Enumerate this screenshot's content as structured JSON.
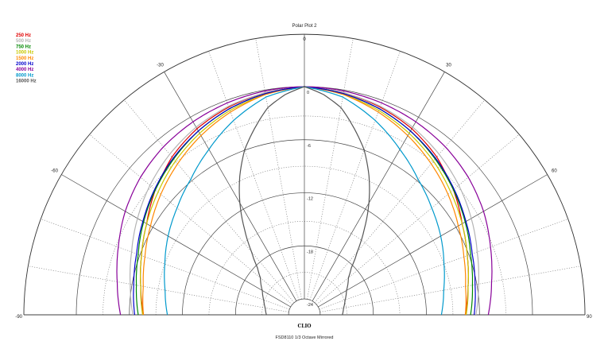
{
  "chart_data": {
    "type": "polar",
    "title": "Polar Plot 2",
    "brand": "CLIO",
    "footer": "FSD8110  1/3 Octave  Mirrored",
    "angle_ticks": [
      "-90",
      "-60",
      "-30",
      "0",
      "30",
      "60",
      "90"
    ],
    "db_ticks": [
      "0",
      "-6",
      "-12",
      "-18",
      "-24"
    ],
    "rlim": [
      -24,
      0
    ],
    "grid": true,
    "legend_position": "top-left",
    "series": [
      {
        "name": "250 Hz",
        "color": "#e00000",
        "angles": [
          0,
          10,
          20,
          30,
          40,
          45,
          50,
          55,
          60,
          70,
          80,
          90
        ],
        "db": [
          0,
          -0.3,
          -0.8,
          -1.5,
          -2.5,
          -3.2,
          -3.8,
          -4.5,
          -5.2,
          -6.2,
          -7,
          -7.6
        ]
      },
      {
        "name": "500 Hz",
        "color": "#b4b4b4",
        "angles": [
          0,
          10,
          20,
          30,
          40,
          50,
          60,
          70,
          80,
          90
        ],
        "db": [
          0,
          -0.3,
          -0.7,
          -1.3,
          -2.1,
          -3,
          -4,
          -5,
          -5.8,
          -6.4
        ]
      },
      {
        "name": "750 Hz",
        "color": "#008800",
        "angles": [
          0,
          10,
          20,
          30,
          40,
          50,
          60,
          70,
          80,
          90
        ],
        "db": [
          0,
          -0.4,
          -1,
          -1.8,
          -2.8,
          -3.8,
          -4.8,
          -5.8,
          -6.5,
          -7
        ]
      },
      {
        "name": "1000 Hz",
        "color": "#c8c800",
        "angles": [
          0,
          10,
          20,
          30,
          40,
          50,
          60,
          70,
          80,
          90
        ],
        "db": [
          0,
          -0.5,
          -1.2,
          -2.1,
          -3.1,
          -4.2,
          -5.2,
          -6.2,
          -7,
          -7.5
        ]
      },
      {
        "name": "1500 Hz",
        "color": "#ff8800",
        "angles": [
          0,
          10,
          20,
          30,
          40,
          50,
          60,
          70,
          80,
          90
        ],
        "db": [
          0,
          -0.5,
          -1.4,
          -2.4,
          -3.5,
          -4.6,
          -5.7,
          -6.6,
          -7.3,
          -7.6
        ]
      },
      {
        "name": "2000 Hz",
        "color": "#0000cc",
        "angles": [
          0,
          10,
          20,
          30,
          40,
          50,
          60,
          70,
          80,
          90
        ],
        "db": [
          0,
          -0.4,
          -1,
          -1.8,
          -2.7,
          -3.7,
          -4.7,
          -5.6,
          -6.2,
          -6.6
        ]
      },
      {
        "name": "4000 Hz",
        "color": "#880099",
        "angles": [
          0,
          10,
          20,
          30,
          40,
          50,
          60,
          70,
          80,
          90
        ],
        "db": [
          0,
          -0.1,
          -0.3,
          -0.6,
          -1,
          -1.6,
          -2.4,
          -3.4,
          -4.3,
          -5
        ]
      },
      {
        "name": "8000 Hz",
        "color": "#0099cc",
        "angles": [
          0,
          10,
          20,
          30,
          40,
          50,
          60,
          70,
          80,
          90
        ],
        "db": [
          0,
          -0.8,
          -2.4,
          -4.2,
          -5.8,
          -7,
          -8,
          -9,
          -9.8,
          -10.3
        ]
      },
      {
        "name": "16000 Hz",
        "color": "#555555",
        "angles": [
          0,
          5,
          10,
          15,
          20,
          25,
          30,
          35,
          40,
          45,
          50,
          60,
          70,
          80,
          90
        ],
        "db": [
          0,
          -0.8,
          -2,
          -4,
          -6,
          -8.5,
          -11.2,
          -14,
          -16.5,
          -18.3,
          -19.3,
          -20.3,
          -20.9,
          -21.3,
          -21.5
        ]
      }
    ]
  }
}
